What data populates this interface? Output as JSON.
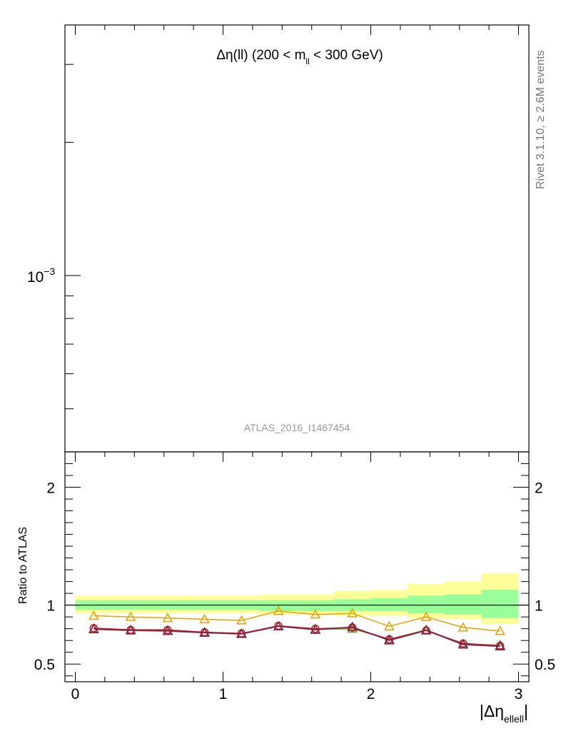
{
  "chart_data": [
    {
      "type": "line",
      "panel": "main",
      "title": "Δη(ll) (200 < m",
      "title_sub": "ll",
      "title_tail": " < 300 GeV)",
      "yscale": "log",
      "ytick_labels": [
        {
          "base": "10",
          "exp": "−3"
        }
      ],
      "xlim": [
        -0.07,
        3.07
      ],
      "watermark": "ATLAS_2016_I1467454",
      "side_note": "Rivet 3.1.10, ≥ 2.6M events"
    },
    {
      "type": "line",
      "panel": "ratio",
      "ylabel": "Ratio to ATLAS",
      "xlabel_main": "|Δη",
      "xlabel_sub": "ellell",
      "xlabel_tail": "|",
      "ylim": [
        0.35,
        2.3
      ],
      "xlim": [
        -0.07,
        3.07
      ],
      "x_ticks": [
        0,
        1,
        2,
        3
      ],
      "x_tick_labels": [
        "0",
        "1",
        "2",
        "3"
      ],
      "y_ticks": [
        0.5,
        1,
        2
      ],
      "y_tick_labels": [
        "0.5",
        "1",
        "2"
      ],
      "x_bin_edges": [
        0,
        0.25,
        0.5,
        0.75,
        1.0,
        1.25,
        1.5,
        1.75,
        2.0,
        2.25,
        2.5,
        2.75,
        3.0
      ],
      "x": [
        0.125,
        0.375,
        0.625,
        0.875,
        1.125,
        1.375,
        1.625,
        1.875,
        2.125,
        2.375,
        2.625,
        2.875
      ],
      "band_outer": {
        "color": "#ffff99",
        "low": [
          0.93,
          0.93,
          0.93,
          0.93,
          0.93,
          0.92,
          0.92,
          0.91,
          0.91,
          0.89,
          0.88,
          0.84
        ],
        "high": [
          1.08,
          1.08,
          1.08,
          1.08,
          1.08,
          1.09,
          1.09,
          1.12,
          1.13,
          1.18,
          1.2,
          1.27
        ]
      },
      "band_inner": {
        "color": "#99ff99",
        "low": [
          0.96,
          0.96,
          0.96,
          0.96,
          0.96,
          0.95,
          0.95,
          0.95,
          0.95,
          0.93,
          0.92,
          0.89
        ],
        "high": [
          1.04,
          1.04,
          1.04,
          1.04,
          1.04,
          1.04,
          1.04,
          1.05,
          1.06,
          1.08,
          1.09,
          1.13
        ]
      },
      "series": [
        {
          "color": "#e8a000",
          "marker": "triangle",
          "values": [
            0.91,
            0.9,
            0.89,
            0.88,
            0.87,
            0.95,
            0.92,
            0.93,
            0.82,
            0.9,
            0.81,
            0.78
          ]
        },
        {
          "color": "#6b8e23",
          "marker": "triangle",
          "values": [
            0.8,
            0.79,
            0.785,
            0.77,
            0.76,
            0.82,
            0.795,
            0.8,
            0.71,
            0.79,
            0.67,
            0.66
          ]
        },
        {
          "color": "#b22222",
          "marker": "circle",
          "values": [
            0.805,
            0.79,
            0.79,
            0.77,
            0.76,
            0.825,
            0.8,
            0.81,
            0.71,
            0.785,
            0.675,
            0.655
          ]
        },
        {
          "color": "#8b1a4a",
          "marker": "triangle",
          "values": [
            0.795,
            0.785,
            0.78,
            0.765,
            0.755,
            0.82,
            0.79,
            0.815,
            0.7,
            0.785,
            0.665,
            0.65
          ]
        }
      ]
    }
  ]
}
